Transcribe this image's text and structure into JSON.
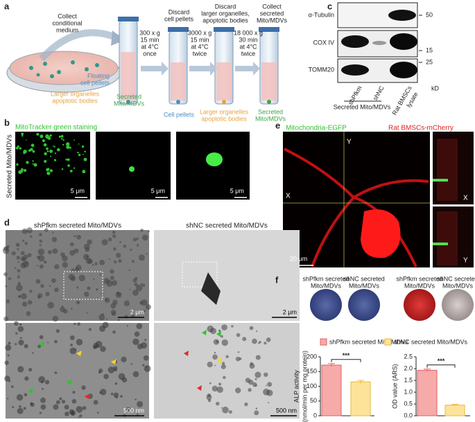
{
  "panels": {
    "a": {
      "label": "a",
      "collect_medium": [
        "Collect",
        "conditional",
        "medium"
      ],
      "step1": [
        "300 x g",
        "15 min",
        "at 4°C",
        "once"
      ],
      "discard1": [
        "Discard",
        "cell pellets"
      ],
      "step2": [
        "3000 x g",
        "15 min",
        "at 4°C",
        "twice"
      ],
      "discard2": [
        "Discard",
        "larger organelles,",
        "apoptotic bodies"
      ],
      "step3": [
        "18 000 x g",
        "30 min",
        "at 4°C",
        "twice"
      ],
      "collect": [
        "Collect",
        "secreted",
        "Mito/MDVs"
      ],
      "floating": [
        "Floating",
        "cell pellets"
      ],
      "larger1": [
        "Larger organelles",
        "apoptotic bodies"
      ],
      "secreted1": [
        "Secreted",
        "Mito/MDVs"
      ],
      "cell_pellets": "Cell pellets",
      "larger2": [
        "Larger organelles",
        "apoptotic bodies"
      ],
      "secreted2": [
        "Secreted",
        "Mito/MDVs"
      ]
    },
    "b": {
      "label": "b",
      "title": "MitoTracker green staining",
      "side": "Secreted Mito/MDVs",
      "scales": [
        "5 μm",
        "5 μm",
        "5 μm"
      ]
    },
    "c": {
      "label": "c",
      "rows": [
        "α-Tubulin",
        "COX IV",
        "TOMM20"
      ],
      "markers": [
        "50",
        "15",
        "25"
      ],
      "lanes": [
        [
          "shPfkm"
        ],
        [
          "shNC"
        ],
        [
          "Rat BMSCs",
          "lysate"
        ]
      ],
      "unit": "kD",
      "group": "Secreted Mito/MDVs"
    },
    "d": {
      "label": "d",
      "titles": [
        "shPfkm secreted Mito/MDVs",
        "shNC secreted Mito/MDVs"
      ],
      "scales": [
        "2 μm",
        "2 μm",
        "500 nm",
        "500 nm"
      ]
    },
    "e": {
      "label": "e",
      "green": "Mitochondria-EGFP",
      "red": "Rat BMSCs-mCherry",
      "y": "Y",
      "x": "X",
      "scale": "20 μm",
      "side_x": "X",
      "side_y": "Y"
    },
    "f": {
      "label": "f",
      "wells": [
        [
          "shPfkm secreted",
          "Mito/MDVs"
        ],
        [
          "shNC secreted",
          "Mito/MDVs"
        ],
        [
          "shPfkm secreted",
          "Mito/MDVs"
        ],
        [
          "shNC secreted",
          "Mito/MDVs"
        ]
      ],
      "legend": [
        {
          "name": "shPfkm secreted Mito/MDVs",
          "color": "#f6aaaa"
        },
        {
          "name": "shNC secreted Mito/MDVs",
          "color": "#fde39a"
        }
      ]
    }
  },
  "chart_data": [
    {
      "type": "bar",
      "ylabel": [
        "ALP activity",
        "(nmol/min per mg protein)"
      ],
      "categories": [
        null,
        null
      ],
      "values": [
        172,
        115
      ],
      "errors": [
        5,
        5
      ],
      "colors": [
        "#f6aaaa",
        "#fde39a"
      ],
      "ylim": [
        0,
        200
      ],
      "yticks": [
        0,
        50,
        100,
        150,
        200
      ],
      "annotation": "***"
    },
    {
      "type": "bar",
      "ylabel": [
        "OD value (ARS)"
      ],
      "categories": [
        null,
        null
      ],
      "values": [
        1.93,
        0.45
      ],
      "errors": [
        0.05,
        0.03
      ],
      "colors": [
        "#f6aaaa",
        "#fde39a"
      ],
      "ylim": [
        0,
        2.5
      ],
      "yticks": [
        {
          "value": 0,
          "label": "0.0"
        },
        0.5,
        {
          "value": 1,
          "label": "1.0"
        },
        1.5,
        {
          "value": 2,
          "label": "2.0"
        },
        2.5
      ],
      "annotation": "***"
    }
  ]
}
